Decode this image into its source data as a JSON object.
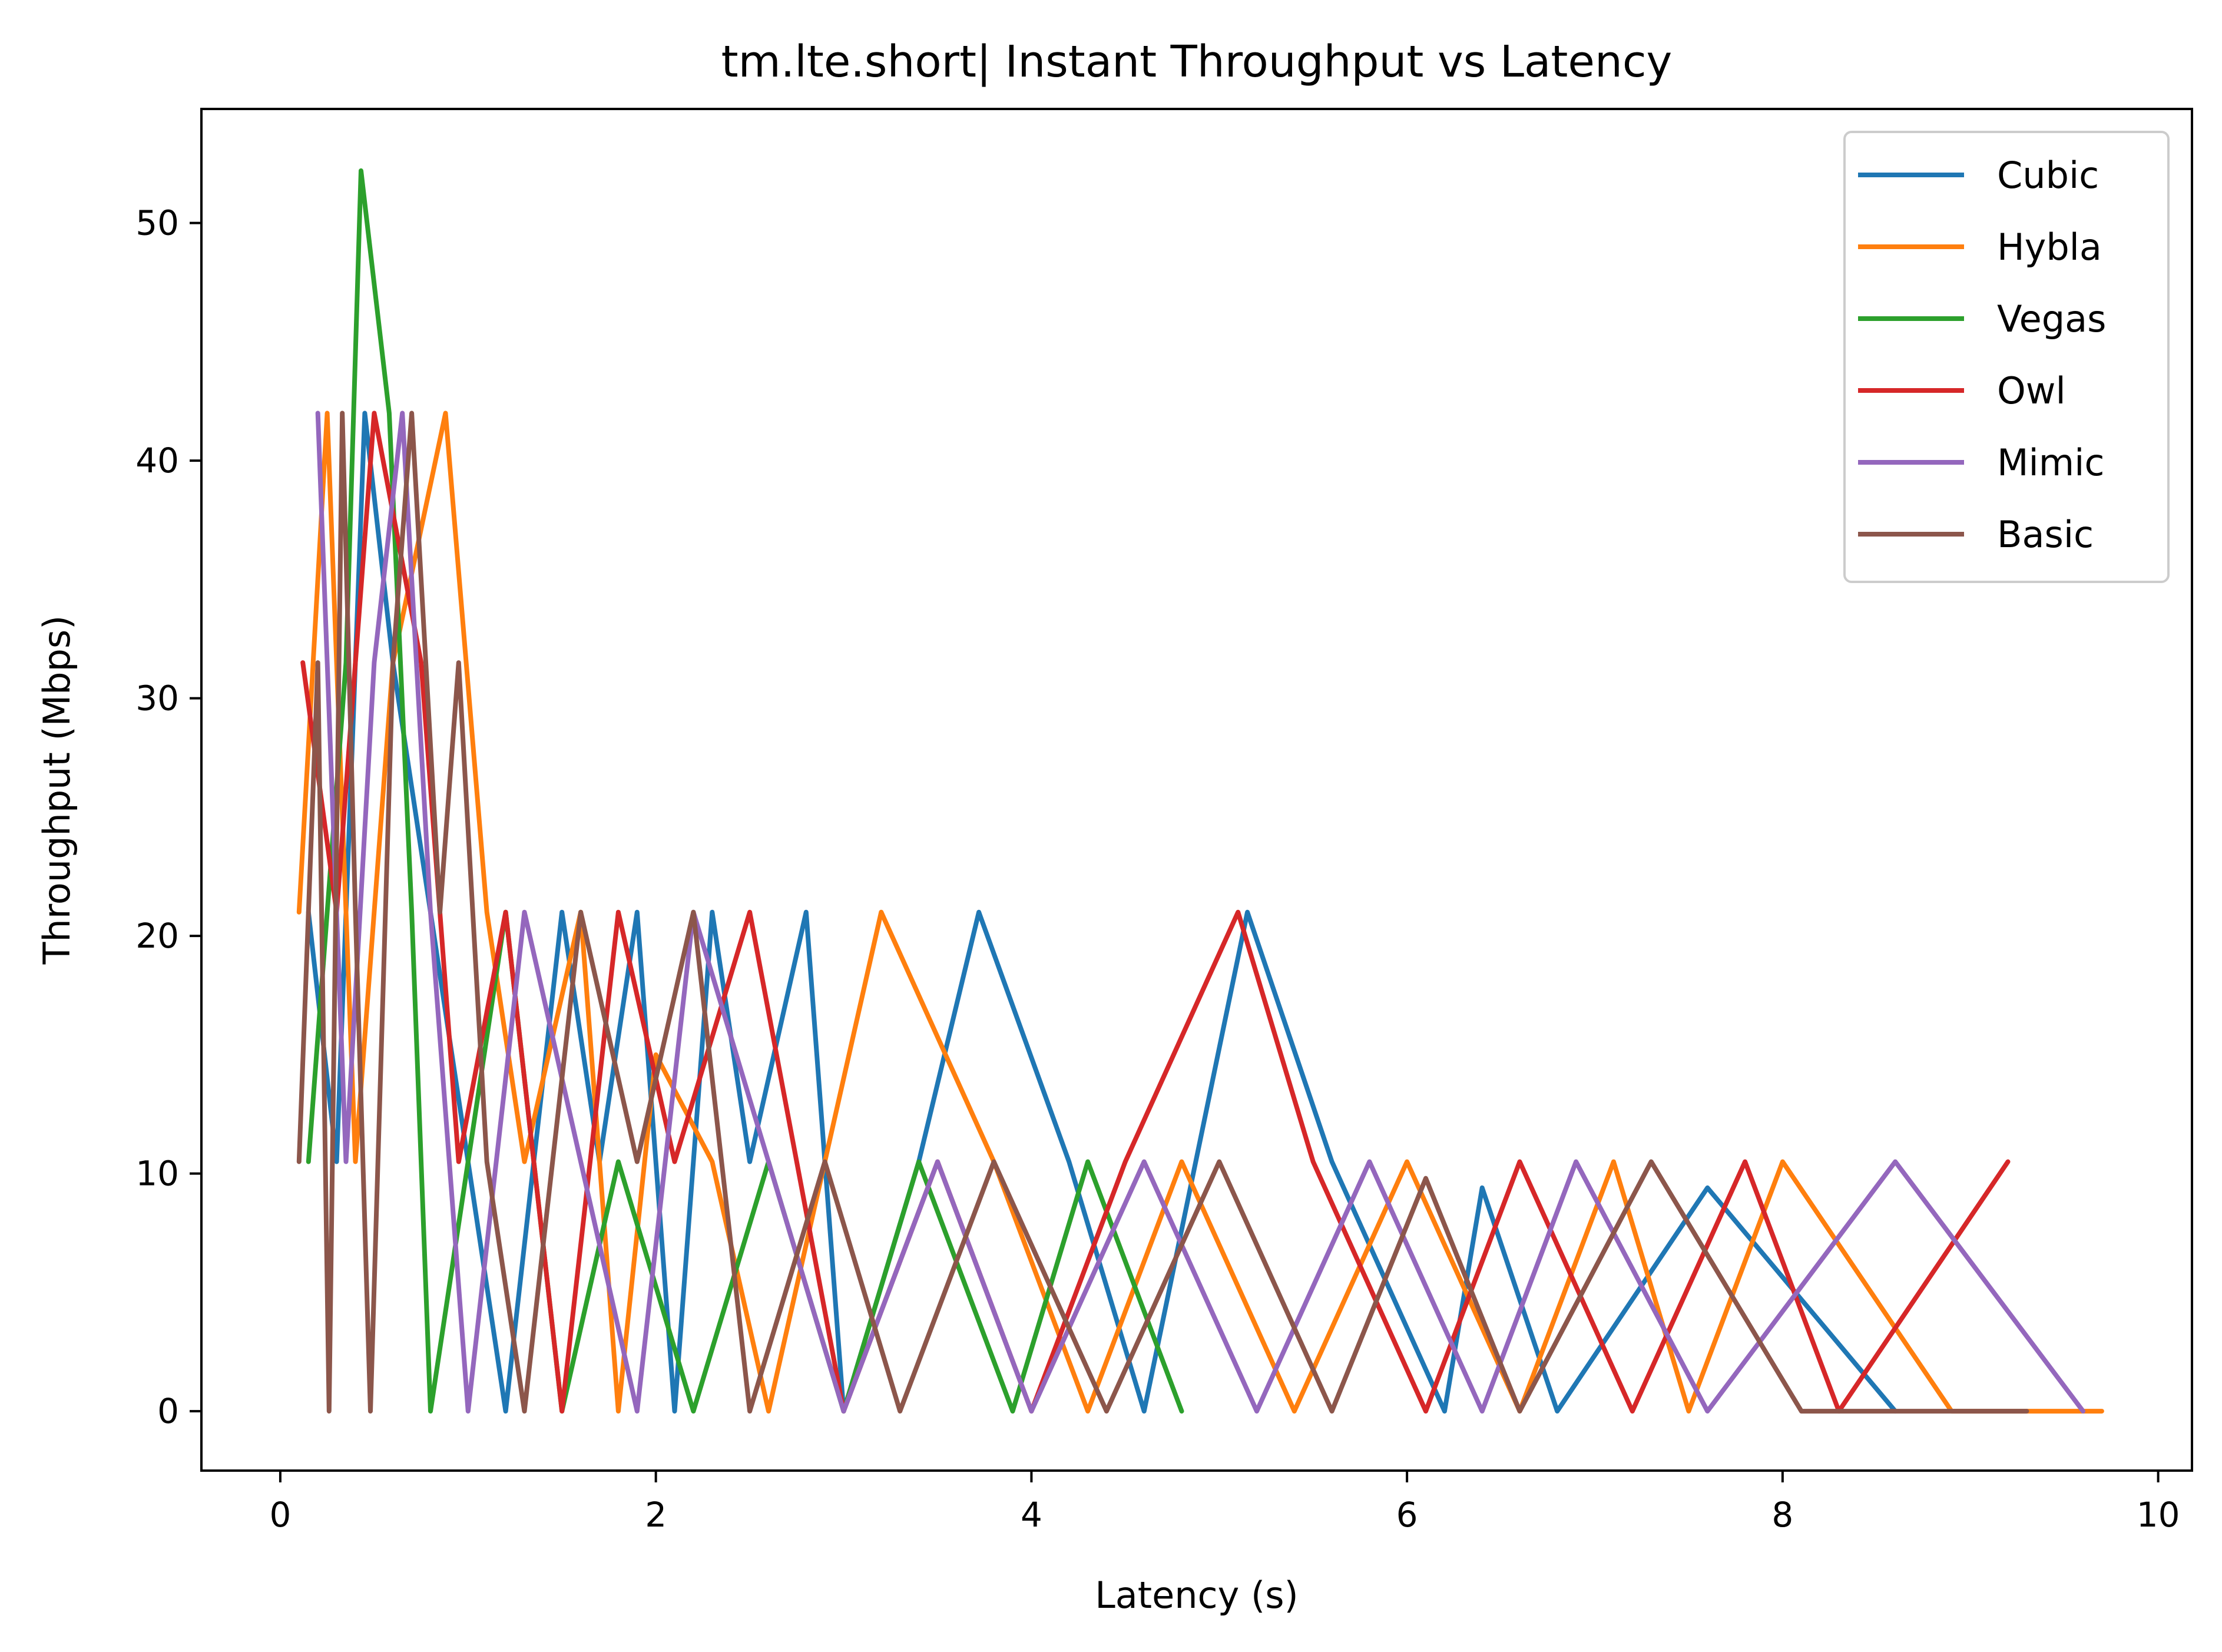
{
  "chart_data": {
    "type": "line",
    "title": "tm.lte.short| Instant Throughput vs Latency",
    "xlabel": "Latency (s)",
    "ylabel": "Throughput (Mbps)",
    "xlim": [
      -0.42,
      10.18
    ],
    "ylim": [
      -2.5,
      54.8
    ],
    "xticks": [
      0,
      2,
      4,
      6,
      8,
      10
    ],
    "yticks": [
      0,
      10,
      20,
      30,
      40,
      50
    ],
    "grid": false,
    "legend_position": "top-right",
    "series": [
      {
        "name": "Cubic",
        "color": "#1f77b4",
        "points": [
          [
            0.15,
            21.0
          ],
          [
            0.3,
            10.5
          ],
          [
            0.45,
            42.0
          ],
          [
            0.6,
            31.5
          ],
          [
            0.8,
            21.0
          ],
          [
            1.0,
            10.5
          ],
          [
            1.2,
            0.0
          ],
          [
            1.5,
            21.0
          ],
          [
            1.7,
            10.5
          ],
          [
            1.9,
            21.0
          ],
          [
            2.1,
            0.0
          ],
          [
            2.3,
            21.0
          ],
          [
            2.5,
            10.5
          ],
          [
            2.8,
            21.0
          ],
          [
            3.0,
            0.0
          ],
          [
            3.4,
            10.5
          ],
          [
            3.72,
            21.0
          ],
          [
            4.2,
            10.5
          ],
          [
            4.6,
            0.0
          ],
          [
            5.15,
            21.0
          ],
          [
            5.6,
            10.5
          ],
          [
            6.2,
            0.0
          ],
          [
            6.4,
            9.4
          ],
          [
            6.8,
            0.0
          ],
          [
            7.6,
            9.4
          ],
          [
            8.6,
            0.0
          ]
        ]
      },
      {
        "name": "Hybla",
        "color": "#ff7f0e",
        "points": [
          [
            0.1,
            21.0
          ],
          [
            0.25,
            42.0
          ],
          [
            0.4,
            10.5
          ],
          [
            0.6,
            31.5
          ],
          [
            0.88,
            42.0
          ],
          [
            1.1,
            21.0
          ],
          [
            1.3,
            10.5
          ],
          [
            1.6,
            21.0
          ],
          [
            1.8,
            0.0
          ],
          [
            2.0,
            15.0
          ],
          [
            2.3,
            10.5
          ],
          [
            2.6,
            0.0
          ],
          [
            2.9,
            10.5
          ],
          [
            3.2,
            21.0
          ],
          [
            3.8,
            10.5
          ],
          [
            4.3,
            0.0
          ],
          [
            4.8,
            10.5
          ],
          [
            5.4,
            0.0
          ],
          [
            6.0,
            10.5
          ],
          [
            6.6,
            0.0
          ],
          [
            7.1,
            10.5
          ],
          [
            7.5,
            0.0
          ],
          [
            8.0,
            10.5
          ],
          [
            8.9,
            0.0
          ],
          [
            9.7,
            0.0
          ]
        ]
      },
      {
        "name": "Vegas",
        "color": "#2ca02c",
        "points": [
          [
            0.15,
            10.5
          ],
          [
            0.25,
            21.0
          ],
          [
            0.35,
            31.5
          ],
          [
            0.43,
            52.2
          ],
          [
            0.58,
            42.0
          ],
          [
            0.7,
            21.0
          ],
          [
            0.8,
            0.0
          ],
          [
            1.0,
            10.5
          ],
          [
            1.2,
            21.0
          ],
          [
            1.5,
            0.0
          ],
          [
            1.8,
            10.5
          ],
          [
            2.2,
            0.0
          ],
          [
            2.6,
            10.5
          ],
          [
            3.0,
            0.0
          ],
          [
            3.4,
            10.5
          ],
          [
            3.9,
            0.0
          ],
          [
            4.3,
            10.5
          ],
          [
            4.8,
            0.0
          ]
        ]
      },
      {
        "name": "Owl",
        "color": "#d62728",
        "points": [
          [
            0.12,
            31.5
          ],
          [
            0.3,
            21.0
          ],
          [
            0.5,
            42.0
          ],
          [
            0.75,
            31.5
          ],
          [
            0.95,
            10.5
          ],
          [
            1.2,
            21.0
          ],
          [
            1.5,
            0.0
          ],
          [
            1.8,
            21.0
          ],
          [
            2.1,
            10.5
          ],
          [
            2.5,
            21.0
          ],
          [
            3.0,
            0.0
          ],
          [
            3.5,
            10.5
          ],
          [
            4.0,
            0.0
          ],
          [
            4.5,
            10.5
          ],
          [
            5.1,
            21.0
          ],
          [
            5.5,
            10.5
          ],
          [
            6.1,
            0.0
          ],
          [
            6.6,
            10.5
          ],
          [
            7.2,
            0.0
          ],
          [
            7.8,
            10.5
          ],
          [
            8.3,
            0.0
          ],
          [
            9.2,
            10.5
          ]
        ]
      },
      {
        "name": "Mimic",
        "color": "#9467bd",
        "points": [
          [
            0.2,
            42.0
          ],
          [
            0.35,
            10.5
          ],
          [
            0.5,
            31.5
          ],
          [
            0.65,
            42.0
          ],
          [
            0.8,
            21.0
          ],
          [
            1.0,
            0.0
          ],
          [
            1.3,
            21.0
          ],
          [
            1.6,
            10.5
          ],
          [
            1.9,
            0.0
          ],
          [
            2.2,
            21.0
          ],
          [
            2.6,
            10.5
          ],
          [
            3.0,
            0.0
          ],
          [
            3.5,
            10.5
          ],
          [
            4.0,
            0.0
          ],
          [
            4.6,
            10.5
          ],
          [
            5.2,
            0.0
          ],
          [
            5.8,
            10.5
          ],
          [
            6.4,
            0.0
          ],
          [
            6.9,
            10.5
          ],
          [
            7.6,
            0.0
          ],
          [
            8.6,
            10.5
          ],
          [
            9.6,
            0.0
          ]
        ]
      },
      {
        "name": "Basic",
        "color": "#8c564b",
        "points": [
          [
            0.1,
            10.5
          ],
          [
            0.2,
            31.5
          ],
          [
            0.26,
            0.0
          ],
          [
            0.33,
            42.0
          ],
          [
            0.4,
            21.0
          ],
          [
            0.48,
            0.0
          ],
          [
            0.6,
            31.5
          ],
          [
            0.7,
            42.0
          ],
          [
            0.85,
            21.0
          ],
          [
            0.95,
            31.5
          ],
          [
            1.1,
            10.5
          ],
          [
            1.3,
            0.0
          ],
          [
            1.6,
            21.0
          ],
          [
            1.9,
            10.5
          ],
          [
            2.2,
            21.0
          ],
          [
            2.5,
            0.0
          ],
          [
            2.9,
            10.5
          ],
          [
            3.3,
            0.0
          ],
          [
            3.8,
            10.5
          ],
          [
            4.4,
            0.0
          ],
          [
            5.0,
            10.5
          ],
          [
            5.6,
            0.0
          ],
          [
            6.1,
            9.8
          ],
          [
            6.6,
            0.0
          ],
          [
            7.3,
            10.5
          ],
          [
            8.1,
            0.0
          ],
          [
            9.3,
            0.0
          ]
        ]
      }
    ]
  }
}
